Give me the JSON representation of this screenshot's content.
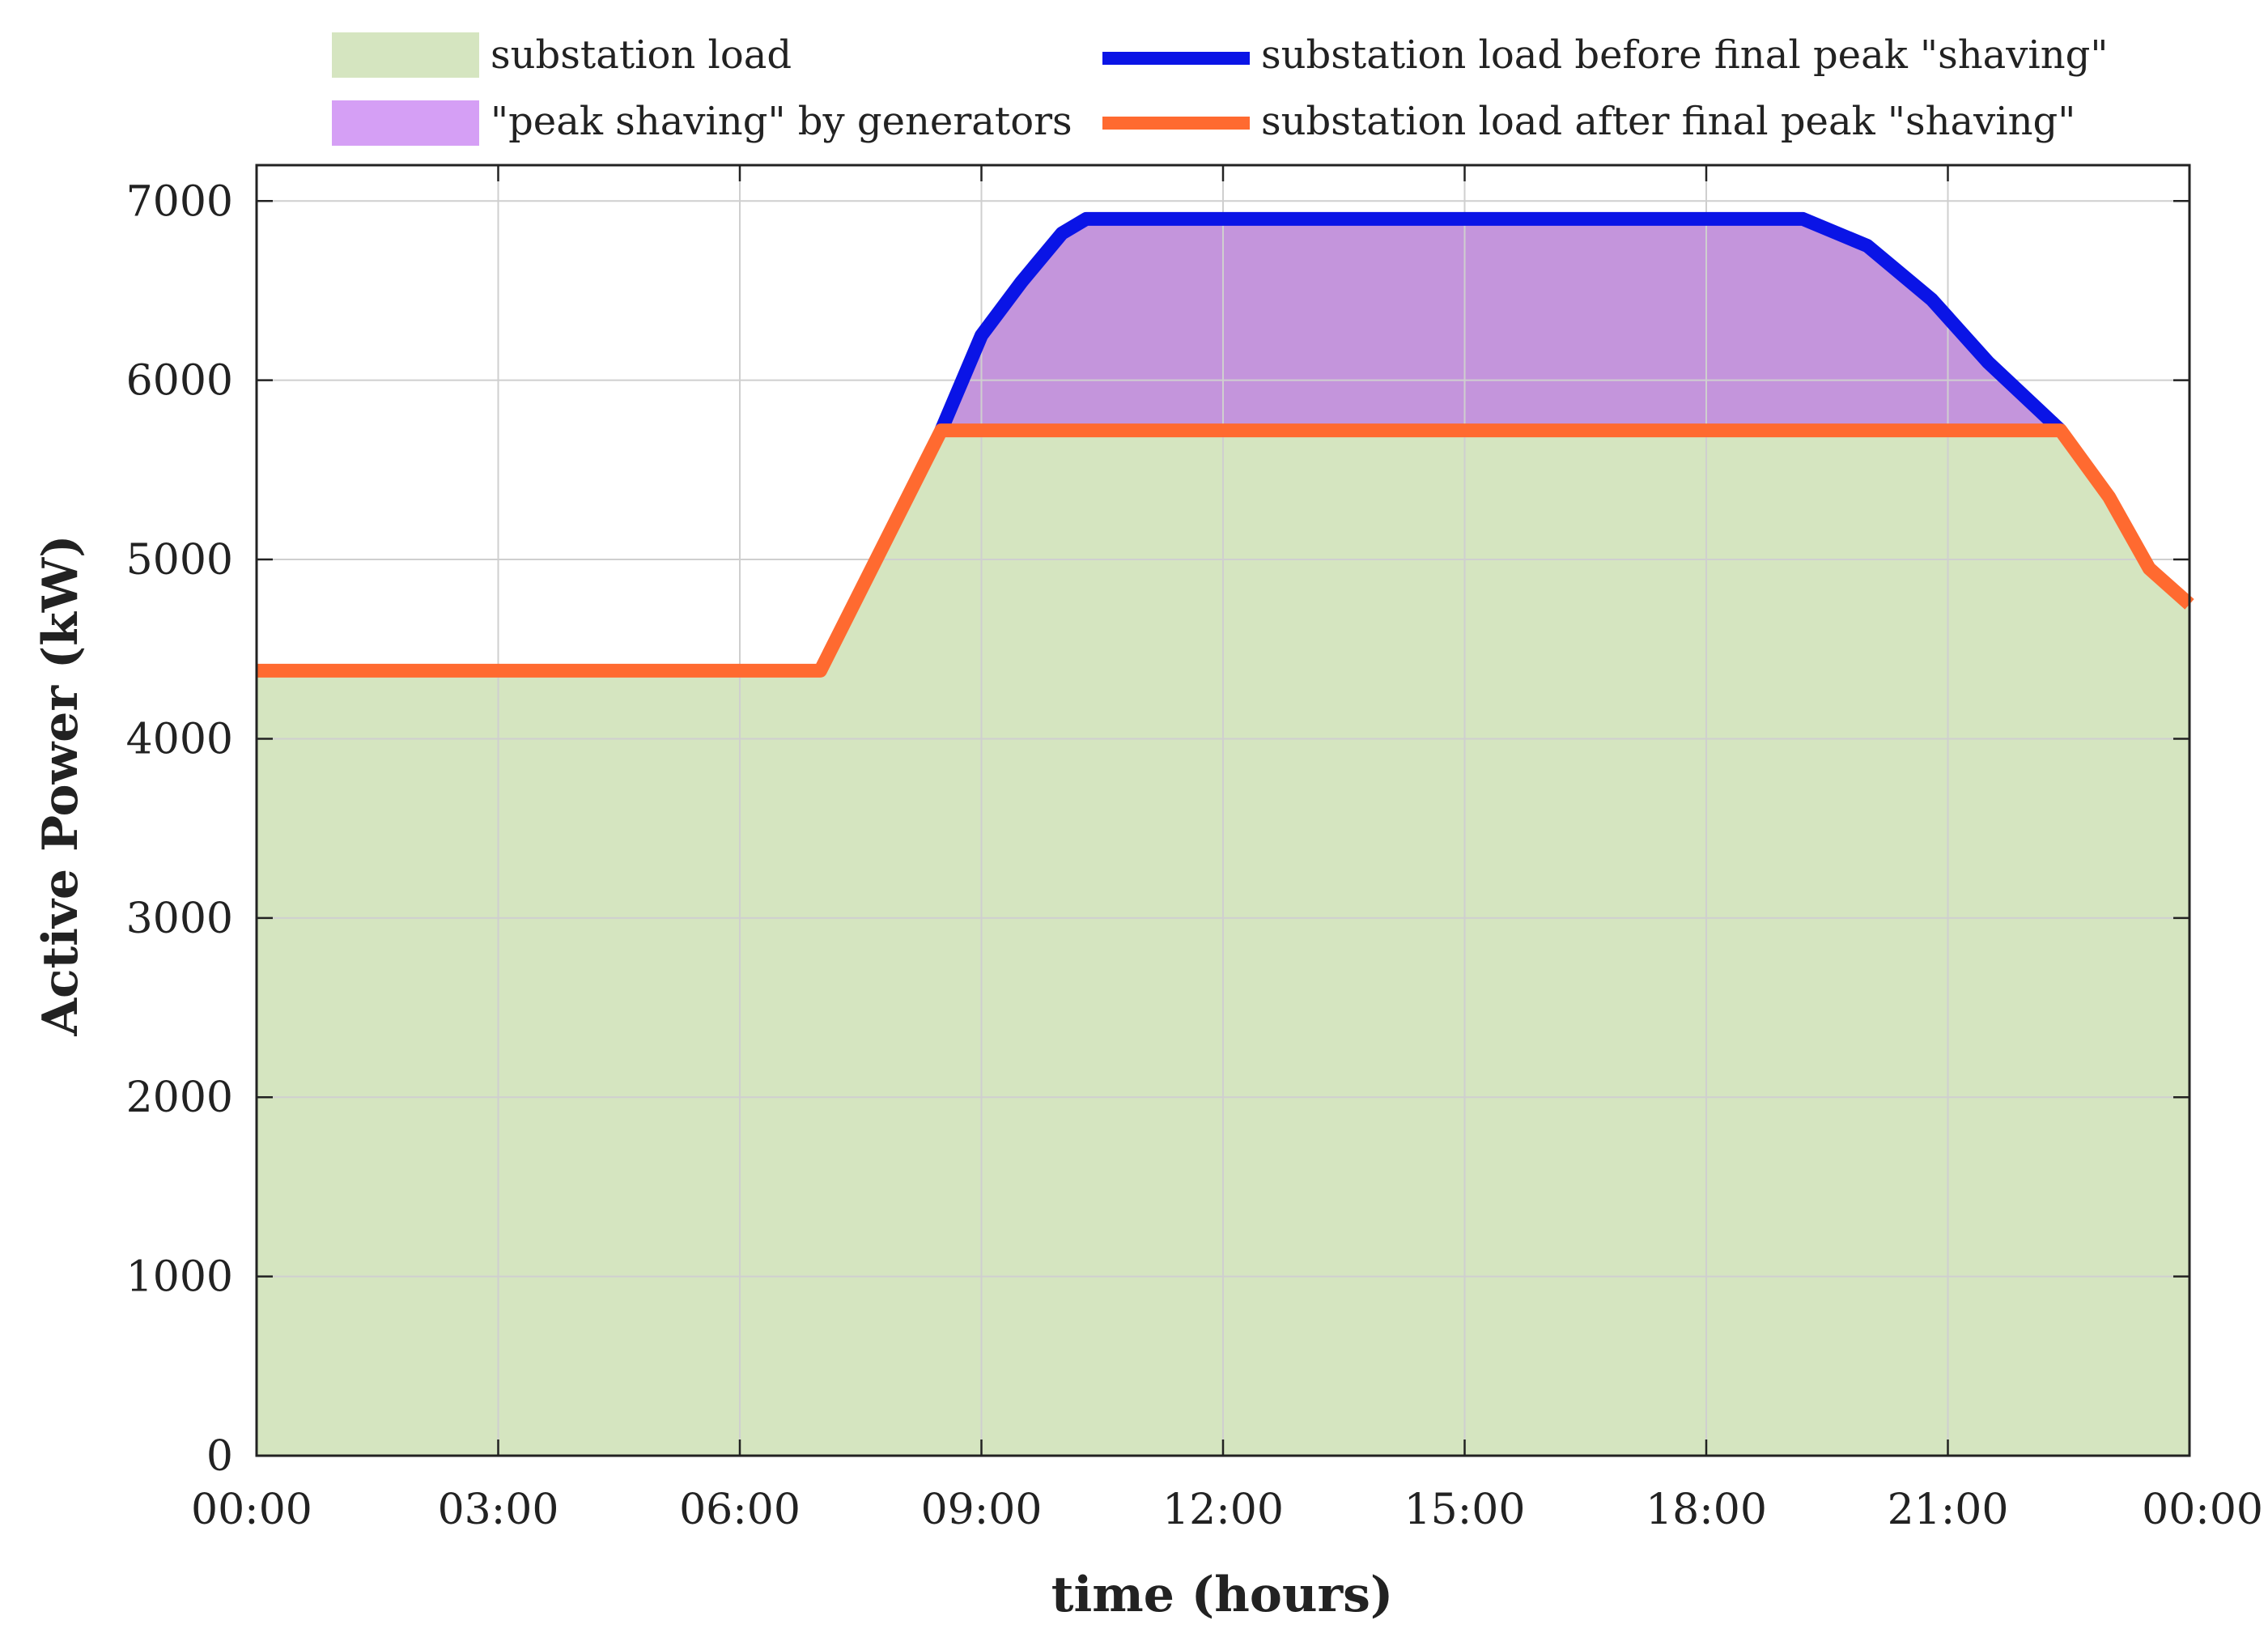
{
  "chart_data": {
    "type": "area",
    "title": "",
    "xlabel": "time (hours)",
    "ylabel": "Active Power (kW)",
    "xlim": [
      0,
      24
    ],
    "ylim": [
      0,
      7200
    ],
    "x_ticks": [
      0,
      3,
      6,
      9,
      12,
      15,
      18,
      21,
      24
    ],
    "x_tick_labels": [
      "00:00",
      "03:00",
      "06:00",
      "09:00",
      "12:00",
      "15:00",
      "18:00",
      "21:00",
      "00:00"
    ],
    "y_ticks": [
      0,
      1000,
      2000,
      3000,
      4000,
      5000,
      6000,
      7000
    ],
    "y_tick_labels": [
      "0",
      "1000",
      "2000",
      "3000",
      "4000",
      "5000",
      "6000",
      "7000"
    ],
    "grid": true,
    "legend_position": "top",
    "colors": {
      "substation_load": "#d5e5c0",
      "peak_shaving": "#c495dc",
      "peak_shaving_legend": "#d59ff5",
      "before": "#0a14e6",
      "after": "#ff6a30"
    },
    "series": [
      {
        "name": "substation load",
        "kind": "area",
        "x": [
          0,
          7,
          8.5,
          22.4,
          23,
          23.5,
          24
        ],
        "y": [
          4380,
          4380,
          5720,
          5720,
          5350,
          4950,
          4750
        ]
      },
      {
        "name": "\"peak shaving\" by generators",
        "kind": "area-between",
        "x": [
          8.5,
          9,
          9.5,
          10,
          10.3,
          19.2,
          20,
          20.8,
          21.5,
          22.4
        ],
        "y_upper": [
          5720,
          6250,
          6550,
          6820,
          6900,
          6900,
          6750,
          6450,
          6100,
          5720
        ],
        "y_lower": [
          5720,
          5720,
          5720,
          5720,
          5720,
          5720,
          5720,
          5720,
          5720,
          5720
        ]
      },
      {
        "name": "substation load before final peak \"shaving\"",
        "kind": "line",
        "x": [
          8.5,
          9,
          9.5,
          10,
          10.3,
          19.2,
          20,
          20.8,
          21.5,
          22.4
        ],
        "y": [
          5720,
          6250,
          6550,
          6820,
          6900,
          6900,
          6750,
          6450,
          6100,
          5720
        ]
      },
      {
        "name": "substation load after final peak \"shaving\"",
        "kind": "line",
        "x": [
          0,
          7,
          8.5,
          22.4,
          23,
          23.5,
          24
        ],
        "y": [
          4380,
          4380,
          5720,
          5720,
          5350,
          4950,
          4750
        ]
      }
    ]
  }
}
